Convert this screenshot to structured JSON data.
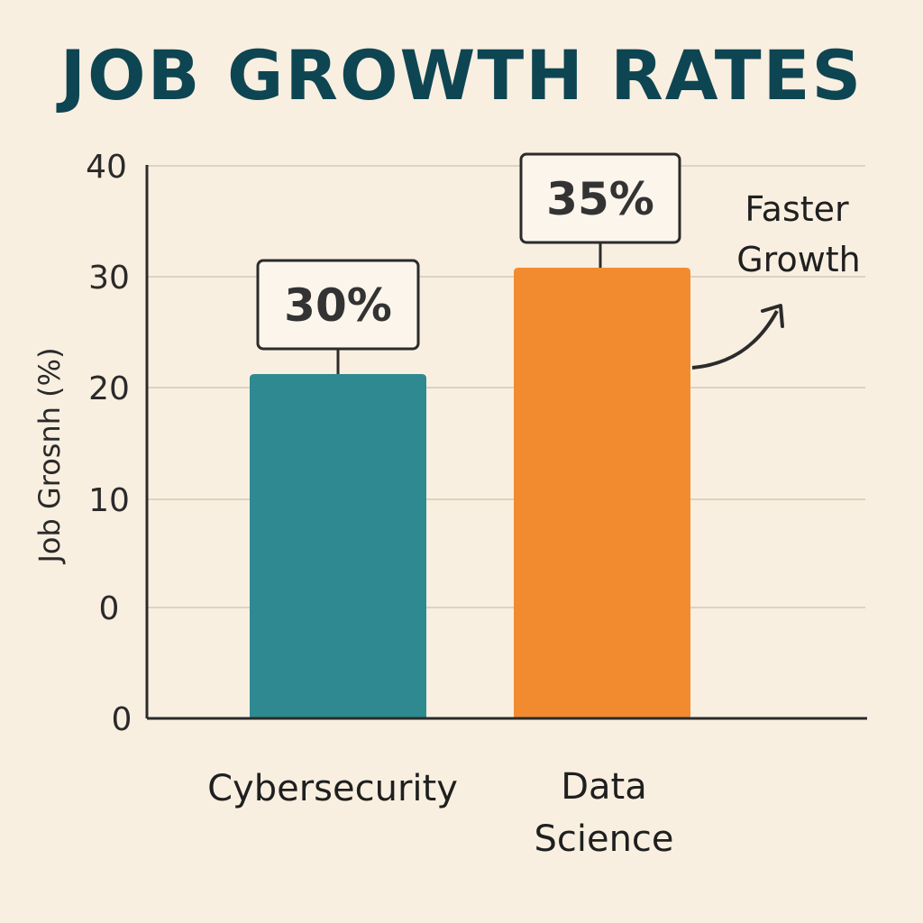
{
  "chart_data": {
    "type": "bar",
    "title": "JOB GROWTH RATES",
    "ylabel": "Job Grosnh (%)",
    "xlabel": "",
    "categories": [
      "Cybersecurity",
      "Data Science"
    ],
    "category_lines": [
      [
        "Cybersecurity"
      ],
      [
        "Data",
        "Science"
      ]
    ],
    "values": [
      30,
      35
    ],
    "data_labels": [
      "30%",
      "35%"
    ],
    "bar_colors": [
      "#2e8a90",
      "#f28b30"
    ],
    "y_ticks": [
      "0",
      "0",
      "10",
      "20",
      "30",
      "40"
    ],
    "grid": true,
    "annotation": {
      "lines": [
        "Faster",
        "Growth"
      ],
      "points_to": "Data Science"
    }
  }
}
